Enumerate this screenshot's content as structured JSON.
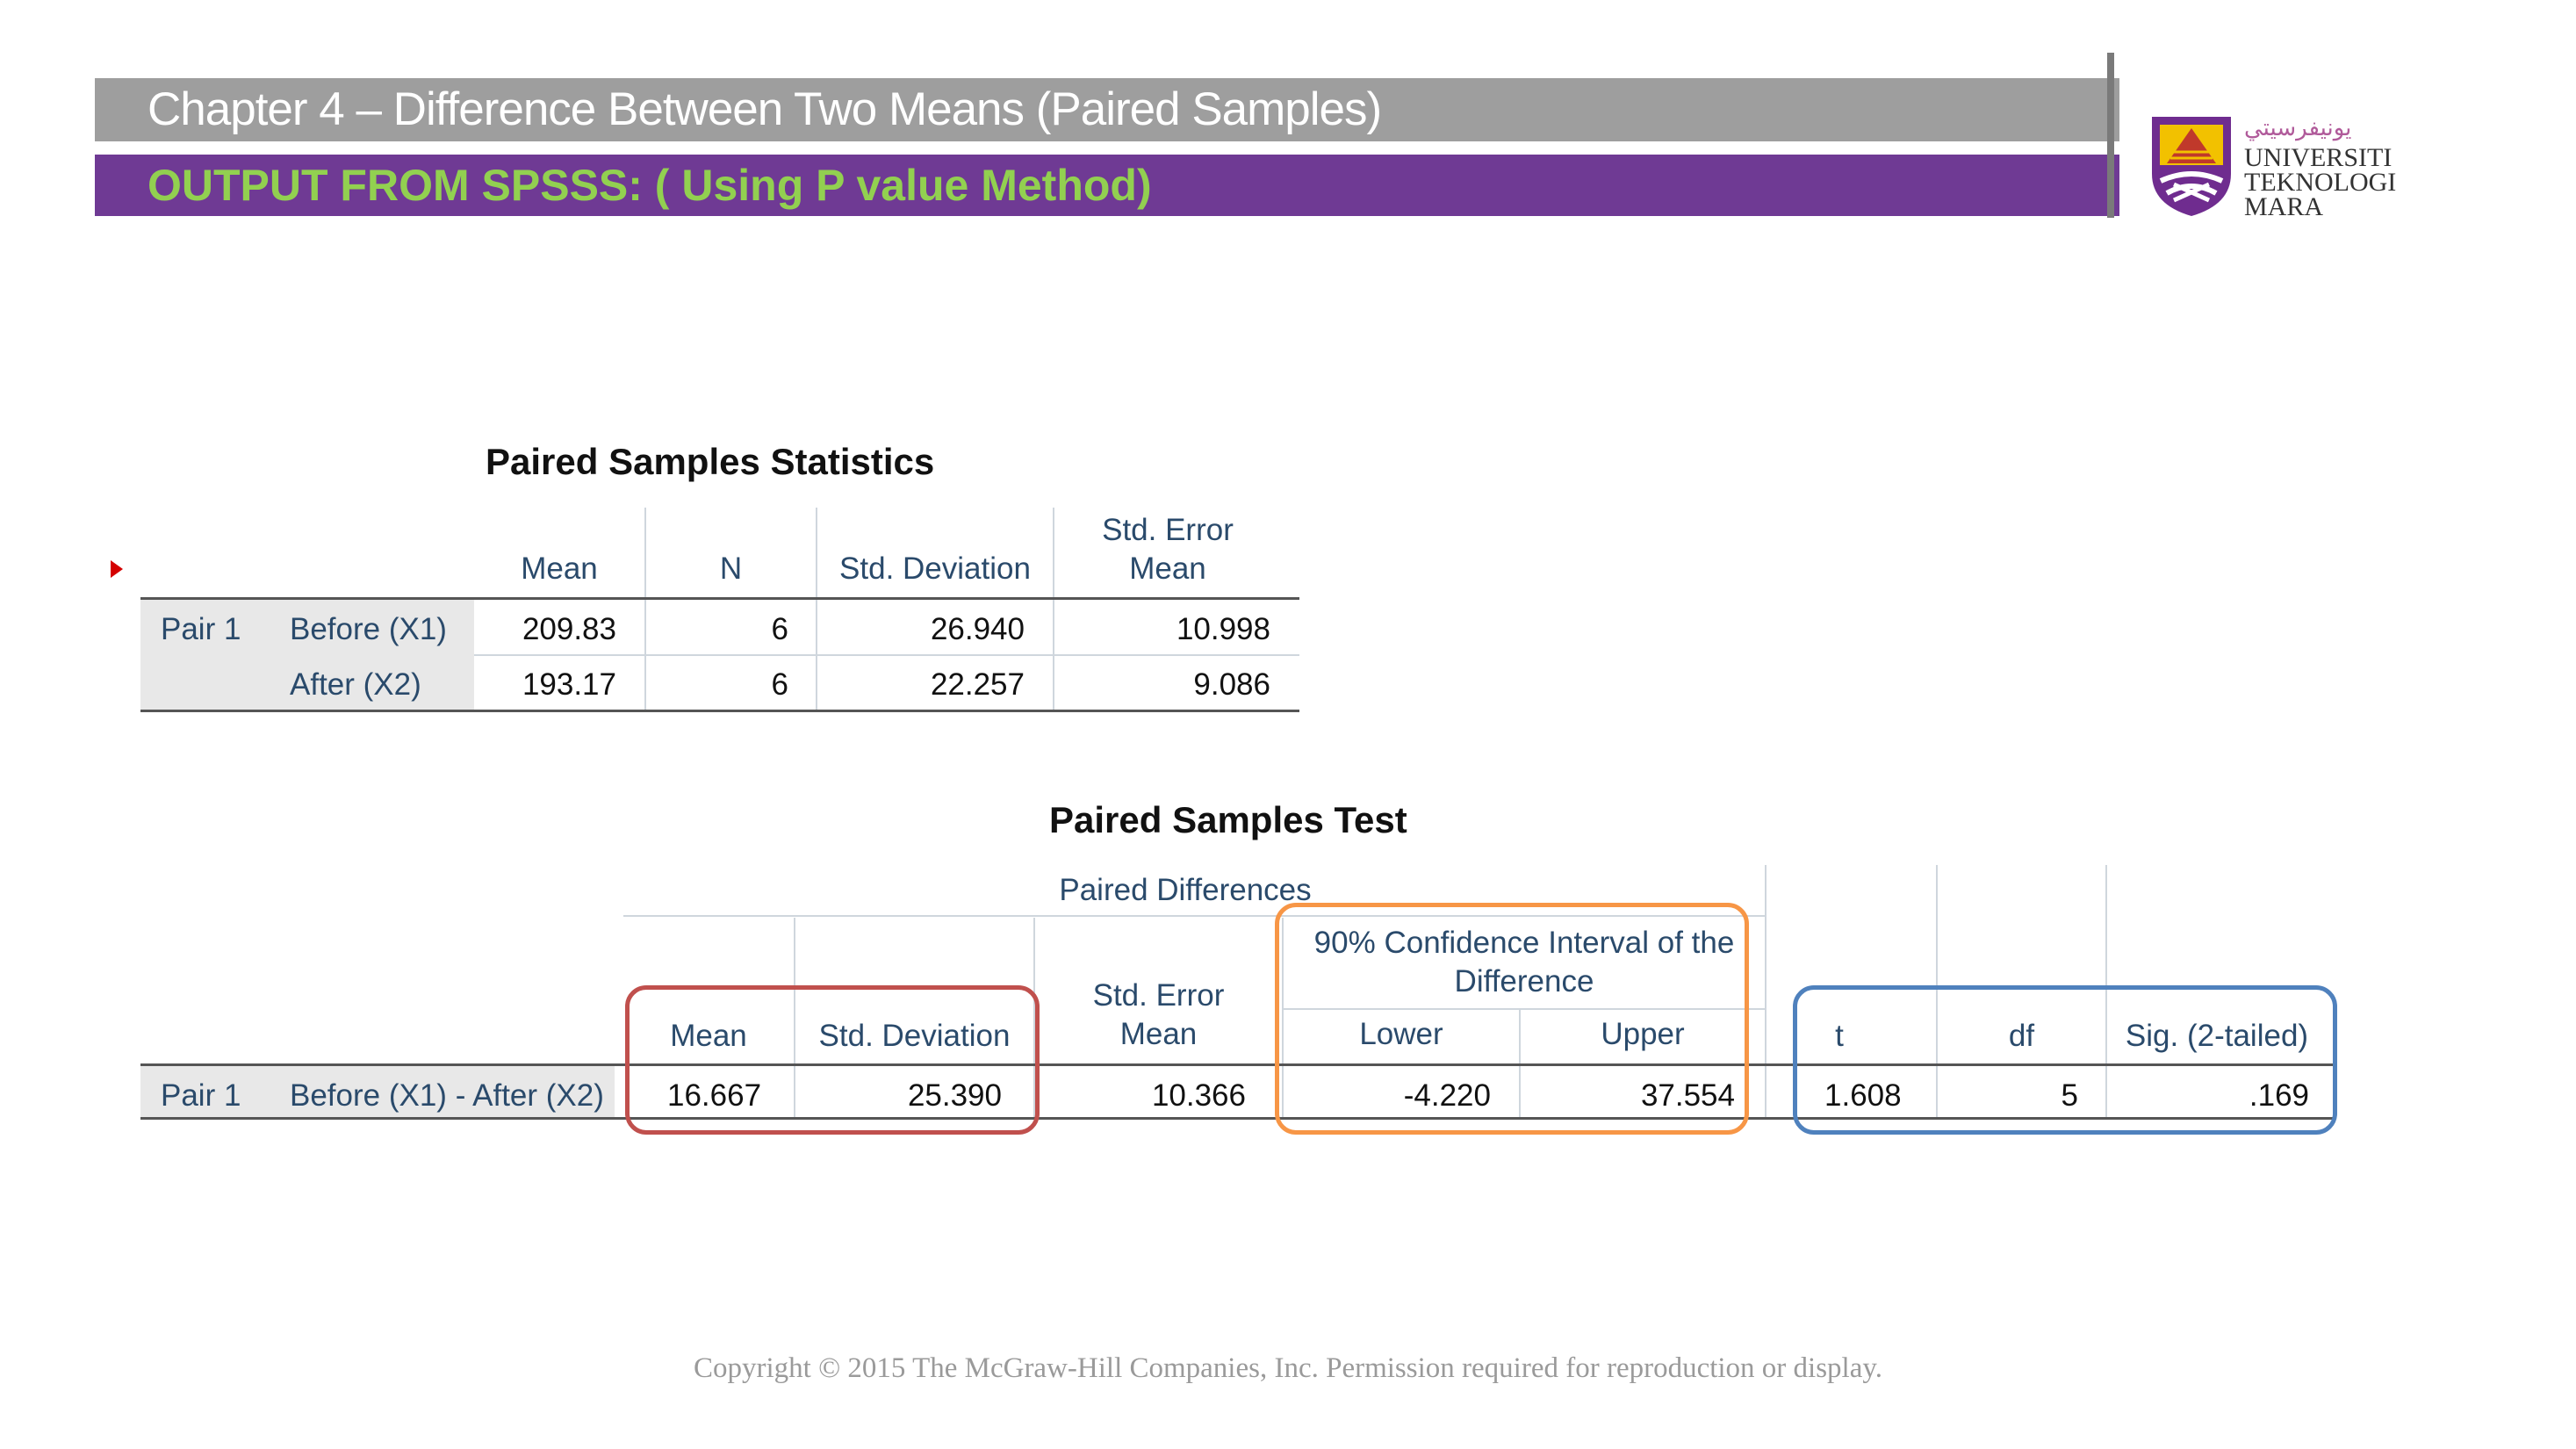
{
  "header": {
    "title": "Chapter 4 – Difference Between Two Means (Paired Samples)",
    "subtitle": "OUTPUT FROM SPSSS: ( Using P value Method)"
  },
  "logo": {
    "line1": "UNIVERSITI",
    "line2": "TEKNOLOGI",
    "line3": "MARA",
    "script": "ﻳﻮﻧﻴﻔﺮﺳﻴﺘﻲ"
  },
  "stats_table": {
    "title": "Paired Samples Statistics",
    "headers": {
      "mean": "Mean",
      "n": "N",
      "sd": "Std. Deviation",
      "se_line1": "Std. Error",
      "se_line2": "Mean"
    },
    "pair_label": "Pair 1",
    "rows": [
      {
        "label": "Before (X1)",
        "mean": "209.83",
        "n": "6",
        "sd": "26.940",
        "se": "10.998"
      },
      {
        "label": "After (X2)",
        "mean": "193.17",
        "n": "6",
        "sd": "22.257",
        "se": "9.086"
      }
    ]
  },
  "test_table": {
    "title": "Paired Samples Test",
    "group_header": "Paired Differences",
    "ci_header_line1": "90% Confidence Interval of the",
    "ci_header_line2": "Difference",
    "headers": {
      "mean": "Mean",
      "sd": "Std. Deviation",
      "se_line1": "Std. Error",
      "se_line2": "Mean",
      "lower": "Lower",
      "upper": "Upper",
      "t": "t",
      "df": "df",
      "sig": "Sig. (2-tailed)"
    },
    "pair_label": "Pair 1",
    "row": {
      "label": "Before (X1) - After (X2)",
      "mean": "16.667",
      "sd": "25.390",
      "se": "10.366",
      "lower": "-4.220",
      "upper": "37.554",
      "t": "1.608",
      "df": "5",
      "sig": ".169"
    }
  },
  "highlight_colors": {
    "red": "#c0504d",
    "orange": "#f79646",
    "blue": "#4f81bd"
  },
  "footer": {
    "copyright": "Copyright © 2015 The McGraw-Hill Companies, Inc.  Permission required for reproduction or display."
  }
}
